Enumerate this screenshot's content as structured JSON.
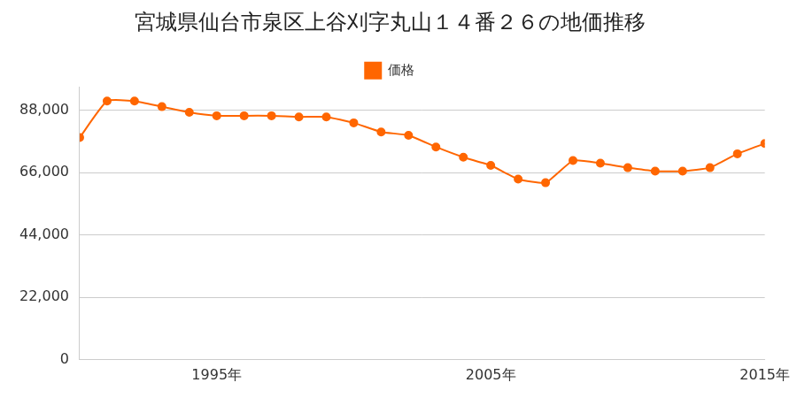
{
  "chart_data": {
    "type": "line",
    "title": "宮城県仙台市泉区上谷刈字丸山１４番２６の地価推移",
    "x": [
      1990,
      1991,
      1992,
      1993,
      1994,
      1995,
      1996,
      1997,
      1998,
      1999,
      2000,
      2001,
      2002,
      2003,
      2004,
      2005,
      2006,
      2007,
      2008,
      2009,
      2010,
      2011,
      2012,
      2013,
      2014,
      2015
    ],
    "series": [
      {
        "name": "価格",
        "color": "#ff6600",
        "marker": "circle",
        "values": [
          78300,
          91200,
          91200,
          89200,
          87200,
          86000,
          86000,
          86000,
          85600,
          85600,
          83500,
          80300,
          79100,
          75000,
          71400,
          68500,
          63700,
          62400,
          70200,
          69300,
          67700,
          66500,
          66500,
          67700,
          72600,
          76200
        ]
      }
    ],
    "xlim": [
      1990,
      2015
    ],
    "xticks": [
      {
        "value": 1995,
        "label": "1995年"
      },
      {
        "value": 2005,
        "label": "2005年"
      },
      {
        "value": 2015,
        "label": "2015年"
      }
    ],
    "ylim": [
      0,
      96000
    ],
    "yticks": [
      0,
      {
        "value": 22000,
        "label": "22,000"
      },
      {
        "value": 44000,
        "label": "44,000"
      },
      {
        "value": 66000,
        "label": "66,000"
      },
      {
        "value": 88000,
        "label": "88,000"
      }
    ],
    "grid": "y",
    "legend": "top"
  }
}
